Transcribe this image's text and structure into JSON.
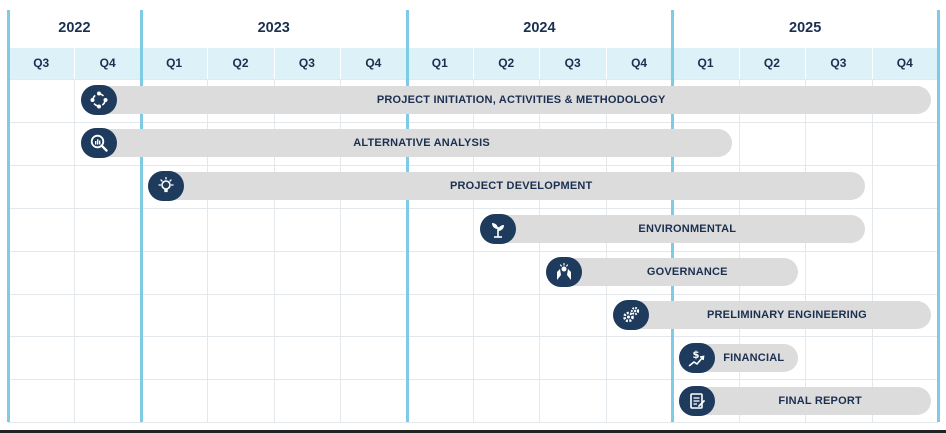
{
  "years": [
    "2022",
    "2023",
    "2024",
    "2025"
  ],
  "quarters": [
    "Q3",
    "Q4",
    "Q1",
    "Q2",
    "Q3",
    "Q4",
    "Q1",
    "Q2",
    "Q3",
    "Q4",
    "Q1",
    "Q2",
    "Q3",
    "Q4"
  ],
  "year_quarter_counts": [
    2,
    4,
    4,
    4
  ],
  "colors": {
    "bar": "#dcdcdd",
    "icon_bg": "#1e3a5c",
    "text": "#1b2f4f",
    "year_divider": "#7fcbe6",
    "quarter_band": "#ddf1f8",
    "grid": "#e3e8ec"
  },
  "chart_data": {
    "type": "gantt",
    "tasks": [
      {
        "label": "PROJECT INITIATION, ACTIVITIES & METHODOLOGY",
        "icon": "cycle-icon",
        "start": "2022 Q4",
        "end": "2025 Q4"
      },
      {
        "label": "ALTERNATIVE ANALYSIS",
        "icon": "magnifier-chart-icon",
        "start": "2022 Q4",
        "end": "2025 Q1"
      },
      {
        "label": "PROJECT DEVELOPMENT",
        "icon": "lightbulb-icon",
        "start": "2023 Q1",
        "end": "2025 Q3"
      },
      {
        "label": "ENVIRONMENTAL",
        "icon": "plant-icon",
        "start": "2024 Q2",
        "end": "2025 Q3"
      },
      {
        "label": "GOVERNANCE",
        "icon": "hands-icon",
        "start": "2024 Q3",
        "end": "2025 Q2"
      },
      {
        "label": "PRELIMINARY ENGINEERING",
        "icon": "gears-icon",
        "start": "2024 Q4",
        "end": "2025 Q4"
      },
      {
        "label": "FINANCIAL",
        "icon": "dollar-growth-icon",
        "start": "2025 Q1",
        "end": "2025 Q2"
      },
      {
        "label": "FINAL REPORT",
        "icon": "report-icon",
        "start": "2025 Q1",
        "end": "2025 Q4"
      }
    ]
  }
}
